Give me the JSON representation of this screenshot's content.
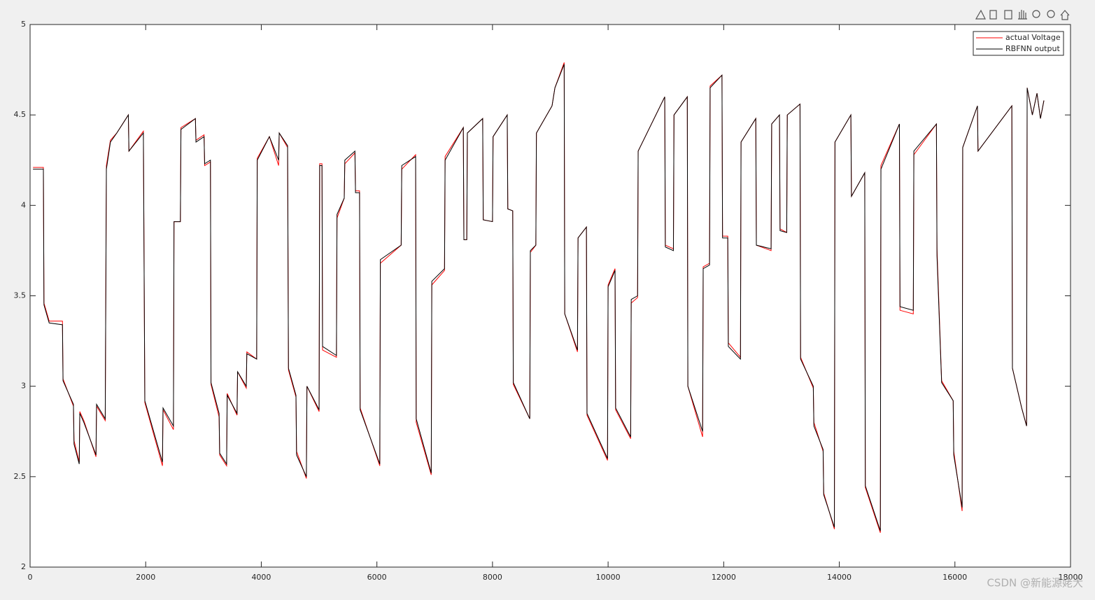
{
  "chart_data": {
    "type": "line",
    "x": [
      50,
      230,
      240,
      330,
      560,
      570,
      750,
      760,
      850,
      860,
      930,
      1140,
      1150,
      1300,
      1320,
      1390,
      1500,
      1700,
      1710,
      1960,
      1985,
      2290,
      2300,
      2480,
      2490,
      2600,
      2610,
      2860,
      2870,
      3010,
      3020,
      3120,
      3130,
      3270,
      3280,
      3400,
      3410,
      3580,
      3590,
      3740,
      3750,
      3920,
      3930,
      4140,
      4300,
      4310,
      4455,
      4470,
      4600,
      4610,
      4780,
      4790,
      5000,
      5010,
      5050,
      5060,
      5300,
      5310,
      5435,
      5445,
      5620,
      5630,
      5700,
      5710,
      6050,
      6060,
      6420,
      6430,
      6670,
      6680,
      6940,
      6950,
      7170,
      7180,
      7495,
      7505,
      7555,
      7565,
      7830,
      7840,
      8000,
      8010,
      8255,
      8265,
      8350,
      8360,
      8645,
      8655,
      8750,
      8760,
      9030,
      9080,
      9240,
      9250,
      9470,
      9480,
      9625,
      9635,
      9990,
      10000,
      10120,
      10130,
      10390,
      10400,
      10510,
      10520,
      10980,
      10990,
      11130,
      11140,
      11370,
      11380,
      11635,
      11645,
      11755,
      11765,
      11970,
      11980,
      12070,
      12080,
      12290,
      12300,
      12555,
      12565,
      12820,
      12830,
      12965,
      12975,
      13090,
      13100,
      13320,
      13330,
      13550,
      13560,
      13720,
      13730,
      13915,
      13925,
      14200,
      14210,
      14440,
      14450,
      14710,
      14720,
      15040,
      15050,
      15280,
      15290,
      15680,
      15690,
      15770,
      15970,
      15980,
      16125,
      16135,
      16390,
      16400,
      16985,
      16995,
      17155,
      17240,
      17250,
      17340,
      17420,
      17480,
      17540
    ],
    "series": [
      {
        "name": "actual Voltage",
        "color": "#ff0000",
        "values": [
          4.21,
          4.21,
          3.46,
          3.36,
          3.36,
          3.04,
          2.89,
          2.7,
          2.58,
          2.86,
          2.81,
          2.61,
          2.89,
          2.81,
          4.22,
          4.36,
          4.4,
          4.5,
          4.3,
          4.41,
          2.91,
          2.56,
          2.87,
          2.76,
          3.91,
          3.91,
          4.43,
          4.48,
          4.36,
          4.39,
          4.22,
          4.24,
          3.01,
          2.83,
          2.62,
          2.56,
          2.96,
          2.84,
          3.08,
          2.99,
          3.19,
          3.15,
          4.26,
          4.38,
          4.22,
          4.4,
          4.32,
          3.09,
          2.94,
          2.64,
          2.49,
          3.0,
          2.86,
          4.23,
          4.23,
          3.2,
          3.16,
          3.93,
          4.04,
          4.23,
          4.29,
          4.08,
          4.08,
          2.88,
          2.56,
          3.68,
          3.78,
          4.2,
          4.28,
          2.8,
          2.51,
          3.56,
          3.64,
          4.27,
          4.43,
          3.81,
          3.81,
          4.4,
          4.48,
          3.92,
          3.91,
          4.38,
          4.5,
          3.98,
          3.97,
          3.01,
          2.82,
          3.74,
          3.78,
          4.4,
          4.55,
          4.65,
          4.79,
          3.4,
          3.19,
          3.82,
          3.88,
          2.84,
          2.59,
          3.56,
          3.65,
          2.87,
          2.71,
          3.46,
          3.49,
          4.3,
          4.6,
          3.78,
          3.76,
          4.5,
          4.6,
          3.0,
          2.72,
          3.66,
          3.68,
          4.66,
          4.72,
          3.83,
          3.83,
          3.24,
          3.16,
          4.35,
          4.48,
          3.78,
          3.75,
          4.45,
          4.5,
          3.87,
          3.85,
          4.5,
          4.56,
          3.16,
          2.99,
          2.8,
          2.64,
          2.41,
          2.21,
          4.35,
          4.5,
          4.05,
          4.18,
          2.44,
          2.19,
          4.22,
          4.45,
          3.42,
          3.4,
          4.28,
          4.45,
          3.76,
          3.03,
          2.92,
          2.64,
          2.31,
          4.32,
          4.55,
          4.3,
          4.55,
          3.1,
          2.88,
          2.78,
          4.65,
          4.5,
          4.62,
          4.48,
          4.58
        ]
      },
      {
        "name": "RBFNN output",
        "color": "#000000",
        "values": [
          4.2,
          4.2,
          3.45,
          3.35,
          3.34,
          3.03,
          2.9,
          2.68,
          2.57,
          2.85,
          2.8,
          2.62,
          2.9,
          2.82,
          4.2,
          4.35,
          4.4,
          4.5,
          4.3,
          4.4,
          2.92,
          2.58,
          2.88,
          2.78,
          3.91,
          3.91,
          4.42,
          4.48,
          4.35,
          4.38,
          4.23,
          4.25,
          3.02,
          2.85,
          2.63,
          2.57,
          2.95,
          2.85,
          3.08,
          3.0,
          3.18,
          3.15,
          4.25,
          4.38,
          4.25,
          4.4,
          4.33,
          3.1,
          2.95,
          2.62,
          2.5,
          3.0,
          2.87,
          4.22,
          4.22,
          3.22,
          3.17,
          3.95,
          4.04,
          4.25,
          4.3,
          4.07,
          4.07,
          2.87,
          2.57,
          3.7,
          3.78,
          4.22,
          4.27,
          2.82,
          2.52,
          3.58,
          3.65,
          4.25,
          4.43,
          3.81,
          3.81,
          4.4,
          4.48,
          3.92,
          3.91,
          4.38,
          4.5,
          3.98,
          3.97,
          3.02,
          2.82,
          3.75,
          3.78,
          4.4,
          4.55,
          4.65,
          4.78,
          3.4,
          3.2,
          3.82,
          3.88,
          2.85,
          2.6,
          3.55,
          3.64,
          2.88,
          2.72,
          3.48,
          3.5,
          4.3,
          4.6,
          3.77,
          3.75,
          4.5,
          4.6,
          3.0,
          2.75,
          3.65,
          3.67,
          4.65,
          4.72,
          3.82,
          3.82,
          3.22,
          3.15,
          4.35,
          4.48,
          3.78,
          3.76,
          4.45,
          4.5,
          3.86,
          3.85,
          4.5,
          4.56,
          3.15,
          3.0,
          2.78,
          2.65,
          2.4,
          2.22,
          4.35,
          4.5,
          4.05,
          4.18,
          2.45,
          2.2,
          4.2,
          4.45,
          3.44,
          3.42,
          4.3,
          4.45,
          3.72,
          3.02,
          2.92,
          2.62,
          2.33,
          4.32,
          4.55,
          4.3,
          4.55,
          3.1,
          2.88,
          2.78,
          4.65,
          4.5,
          4.62,
          4.48,
          4.58
        ]
      }
    ],
    "xlim": [
      0,
      18000
    ],
    "xticks": [
      0,
      2000,
      4000,
      6000,
      8000,
      10000,
      12000,
      14000,
      16000,
      18000
    ],
    "ylim": [
      2,
      5
    ],
    "yticks": [
      2,
      2.5,
      3,
      3.5,
      4,
      4.5,
      5
    ],
    "grid": false,
    "legend": "upper right",
    "watermark": "CSDN @新能源姥大"
  }
}
